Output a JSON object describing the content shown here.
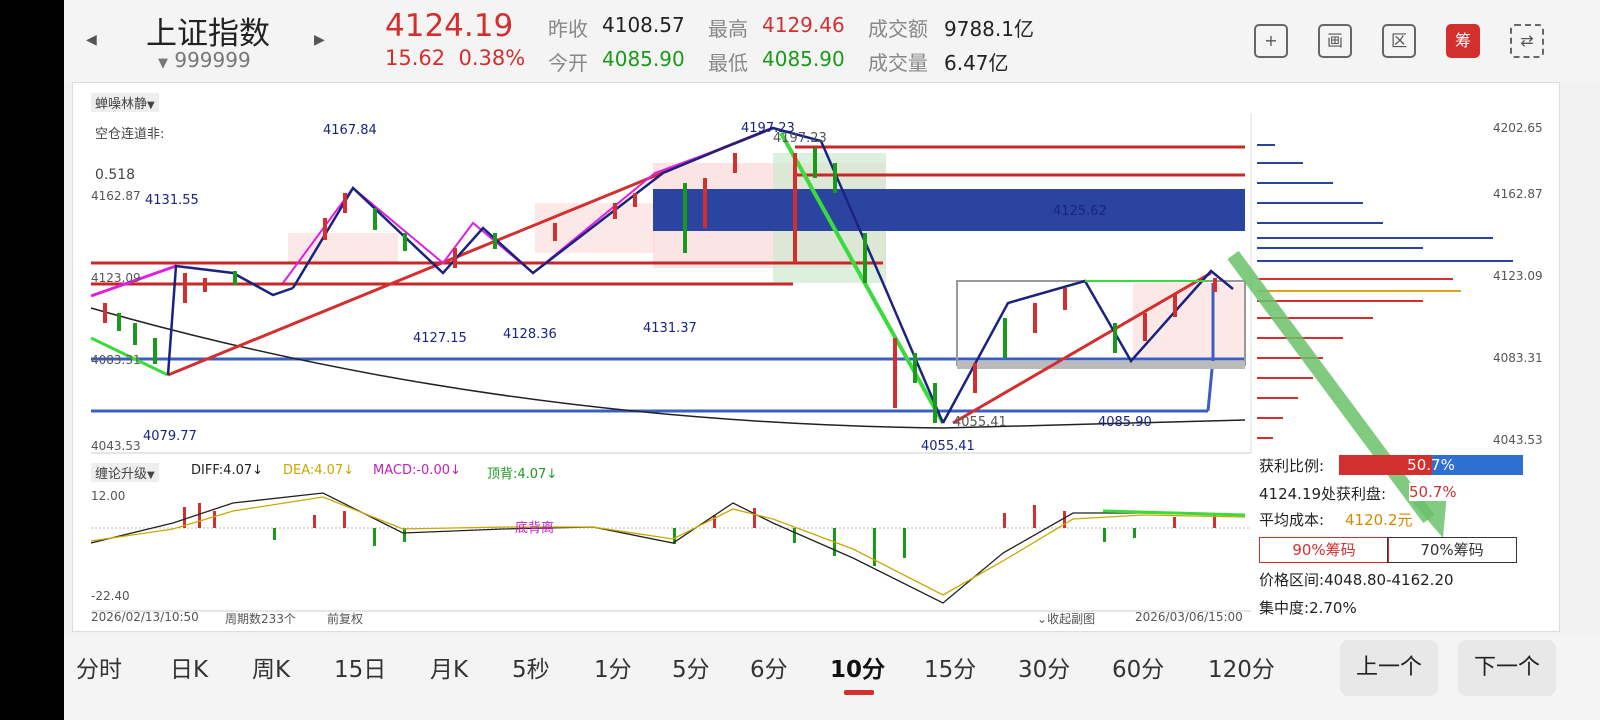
{
  "header": {
    "index_name": "上证指数",
    "index_code": "999999",
    "price": "4124.19",
    "change": "15.62",
    "change_pct": "0.38%",
    "prev_close_label": "昨收",
    "prev_close": "4108.57",
    "open_label": "今开",
    "open": "4085.90",
    "high_label": "最高",
    "high": "4129.46",
    "low_label": "最低",
    "low": "4085.90",
    "amount_label": "成交额",
    "amount": "9788.1亿",
    "volume_label": "成交量",
    "volume": "6.47亿",
    "tools": [
      "+",
      "画",
      "区",
      "筹",
      "⇄"
    ]
  },
  "chart": {
    "indicator_name": "蝉噪林静",
    "top_left_text": "空仓连道非:",
    "ratio_text": "0.518",
    "labels": {
      "l4167": "4167.84",
      "l4131": "4131.55",
      "l4197": "4197.23",
      "l4197b": "4197.23",
      "l4125": "4125.62",
      "l4127": "4127.15",
      "l4128": "4128.36",
      "l4131b": "4131.37",
      "l4079": "4079.77",
      "l4055": "4055.41",
      "l4055b": "4055.41",
      "l4085": "4085.90"
    },
    "y_ticks_left": [
      "4162.87",
      "4123.09",
      "4083.31",
      "4043.53"
    ],
    "y_ticks_right": [
      "4202.65",
      "4162.87",
      "4123.09",
      "4083.31",
      "4043.53"
    ],
    "macd_name": "缠论升级",
    "diff_text": "DIFF:4.07↓",
    "dea_text": "DEA:4.07↓",
    "macd_text": "MACD:-0.00↓",
    "top_div_text": "顶背:4.07↓",
    "macd_high": "12.00",
    "macd_low": "-22.40",
    "bottom_div_text": "底背离",
    "date_start": "2026/02/13/10:50",
    "period_count": "周期数233个",
    "adjust": "前复权",
    "collapse": "收起副图",
    "date_end": "2026/03/06/15:00"
  },
  "chips": {
    "profit_ratio_label": "获利比例:",
    "profit_ratio_value": "50.7%",
    "profit_at_label": "4124.19处获利盘:",
    "profit_at_value": "50.7%",
    "avg_cost_label": "平均成本:",
    "avg_cost_value": "4120.2元",
    "tab_90": "90%筹码",
    "tab_70": "70%筹码",
    "range_label": "价格区间:",
    "range_value": "4048.80-4162.20",
    "concentration_label": "集中度:",
    "concentration_value": "2.70%"
  },
  "periods": [
    "分时",
    "日K",
    "周K",
    "15日",
    "月K",
    "5秒",
    "1分",
    "5分",
    "6分",
    "10分",
    "15分",
    "30分",
    "60分",
    "120分"
  ],
  "active_period": "10分",
  "nav": {
    "prev": "上一个",
    "next": "下一个"
  },
  "colors": {
    "up": "#d32f2f",
    "down": "#1a9a1a",
    "accent_blue": "#2b44a0"
  }
}
